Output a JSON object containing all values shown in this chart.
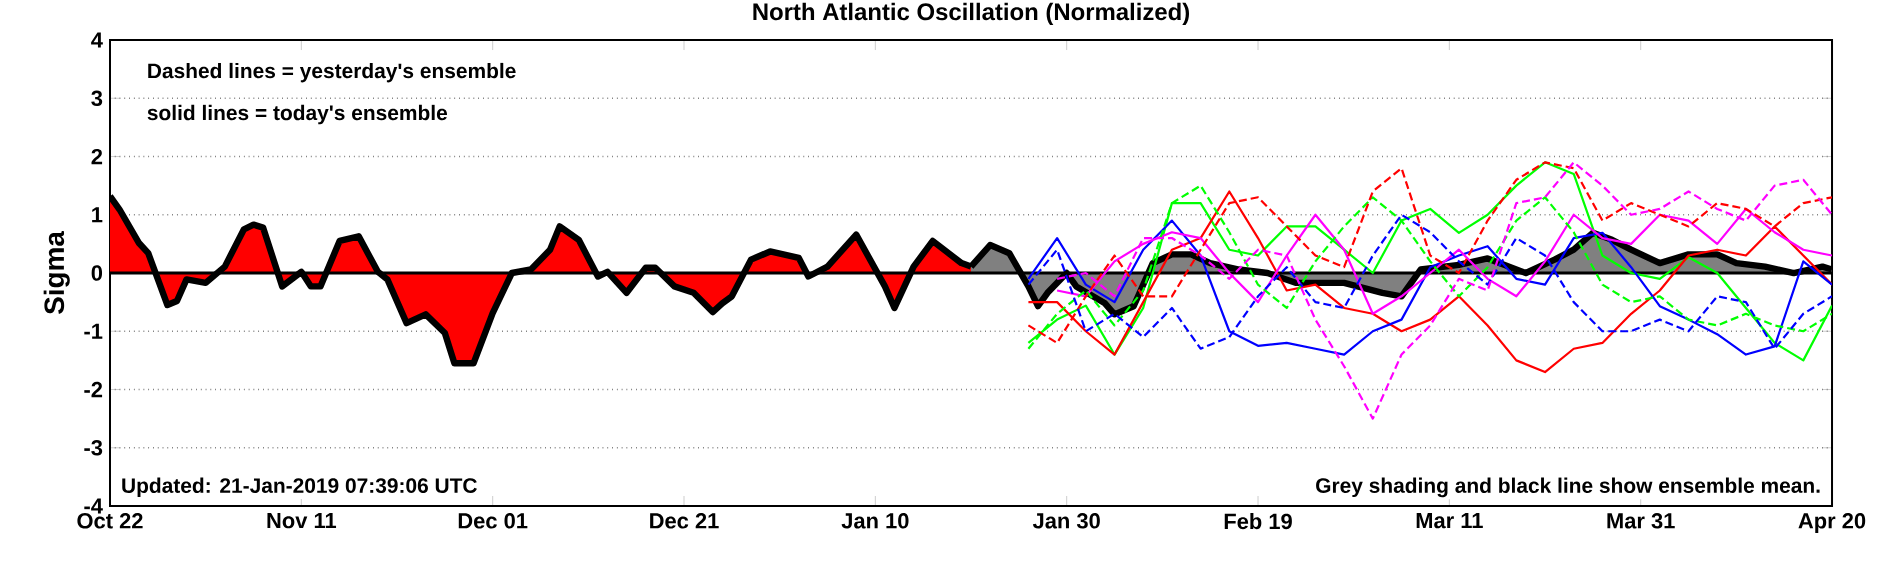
{
  "chart_data": {
    "type": "line",
    "title": "North Atlantic Oscillation (Normalized)",
    "ylabel": "Sigma",
    "x": [
      "2019-01-26",
      "2019-01-29",
      "2019-02-01",
      "2019-02-04",
      "2019-02-07",
      "2019-02-10",
      "2019-02-13",
      "2019-02-16",
      "2019-02-19",
      "2019-02-22",
      "2019-02-25",
      "2019-02-28",
      "2019-03-03",
      "2019-03-06",
      "2019-03-09",
      "2019-03-12",
      "2019-03-15",
      "2019-03-18",
      "2019-03-21",
      "2019-03-24",
      "2019-03-27",
      "2019-03-30",
      "2019-04-02",
      "2019-04-05",
      "2019-04-08",
      "2019-04-11",
      "2019-04-14",
      "2019-04-17",
      "2019-04-20"
    ],
    "xlim": [
      "2018-10-22",
      "2019-04-20"
    ],
    "xticks": [
      {
        "value": "2018-10-22",
        "label": "Oct 22"
      },
      {
        "value": "2018-11-11",
        "label": "Nov 11"
      },
      {
        "value": "2018-12-01",
        "label": "Dec 01"
      },
      {
        "value": "2018-12-21",
        "label": "Dec 21"
      },
      {
        "value": "2019-01-10",
        "label": "Jan 10"
      },
      {
        "value": "2019-01-30",
        "label": "Jan 30"
      },
      {
        "value": "2019-02-19",
        "label": "Feb 19"
      },
      {
        "value": "2019-03-11",
        "label": "Mar 11"
      },
      {
        "value": "2019-03-31",
        "label": "Mar 31"
      },
      {
        "value": "2019-04-20",
        "label": "Apr 20"
      }
    ],
    "ylim": [
      -4,
      4
    ],
    "yticks": [
      -4,
      -3,
      -2,
      -1,
      0,
      1,
      2,
      3,
      4
    ],
    "grid": "y",
    "ref_lines": [
      {
        "axis": "y",
        "value": 0,
        "color": "#000000"
      }
    ],
    "annotations": [
      "Dashed lines = yesterday's ensemble",
      "solid lines = today's ensemble",
      "Updated: 21-Jan-2019 07:39:06 UTC",
      "Grey shading and black line show ensemble mean."
    ],
    "series": [
      {
        "type": "area",
        "color": "#ff0000",
        "x": [
          "2018-10-22",
          "2018-10-23",
          "2018-10-25",
          "2018-10-26",
          "2018-10-28",
          "2018-10-29",
          "2018-10-30",
          "2018-11-01",
          "2018-11-03",
          "2018-11-05",
          "2018-11-06",
          "2018-11-07",
          "2018-11-09",
          "2018-11-11",
          "2018-11-12",
          "2018-11-13",
          "2018-11-15",
          "2018-11-17",
          "2018-11-19",
          "2018-11-20",
          "2018-11-22",
          "2018-11-24",
          "2018-11-26",
          "2018-11-27",
          "2018-11-29",
          "2018-12-01",
          "2018-12-03",
          "2018-12-05",
          "2018-12-07",
          "2018-12-08",
          "2018-12-10",
          "2018-12-12",
          "2018-12-13",
          "2018-12-15",
          "2018-12-17",
          "2018-12-18",
          "2018-12-20",
          "2018-12-22",
          "2018-12-24",
          "2018-12-25",
          "2018-12-26",
          "2018-12-28",
          "2018-12-30",
          "2019-01-02",
          "2019-01-03",
          "2019-01-05",
          "2019-01-08",
          "2019-01-11",
          "2019-01-12",
          "2019-01-14",
          "2019-01-16",
          "2019-01-19",
          "2019-01-20"
        ],
        "values": [
          1.32,
          1.09,
          0.52,
          0.34,
          -0.55,
          -0.48,
          -0.11,
          -0.17,
          0.11,
          0.75,
          0.83,
          0.78,
          -0.23,
          0.02,
          -0.23,
          -0.23,
          0.55,
          0.63,
          0.02,
          -0.11,
          -0.86,
          -0.71,
          -1.03,
          -1.55,
          -1.55,
          -0.69,
          0.0,
          0.06,
          0.4,
          0.8,
          0.57,
          -0.06,
          0.02,
          -0.34,
          0.09,
          0.09,
          -0.23,
          -0.34,
          -0.67,
          -0.52,
          -0.4,
          0.23,
          0.37,
          0.26,
          -0.06,
          0.11,
          0.66,
          -0.23,
          -0.6,
          0.11,
          0.55,
          0.17,
          0.11
        ]
      },
      {
        "color": "#00ff00",
        "values": [
          -1.2,
          -0.8,
          -0.56,
          -1.4,
          -0.6,
          1.2,
          1.2,
          0.4,
          0.3,
          0.8,
          0.8,
          0.4,
          0.0,
          0.9,
          1.1,
          0.69,
          1.0,
          1.5,
          1.9,
          1.7,
          0.3,
          0.0,
          -0.1,
          0.27,
          0.0,
          -0.6,
          -1.2,
          -1.5,
          -0.56
        ]
      },
      {
        "color": "#ff0000",
        "values": [
          -0.5,
          -0.5,
          -1.0,
          -1.4,
          -0.5,
          0.4,
          0.6,
          1.4,
          0.6,
          -0.3,
          -0.2,
          -0.6,
          -0.7,
          -1.0,
          -0.8,
          -0.4,
          -0.9,
          -1.5,
          -1.7,
          -1.3,
          -1.2,
          -0.7,
          -0.3,
          0.3,
          0.4,
          0.3,
          0.8,
          0.3,
          -0.2
        ]
      },
      {
        "color": "#0000ff",
        "values": [
          -0.1,
          0.6,
          -0.2,
          -0.5,
          0.4,
          0.9,
          0.3,
          -1.0,
          -1.25,
          -1.2,
          -1.3,
          -1.4,
          -1.0,
          -0.8,
          0.1,
          0.3,
          0.46,
          -0.1,
          -0.2,
          0.6,
          0.69,
          0.1,
          -0.57,
          -0.8,
          -1.05,
          -1.4,
          -1.26,
          0.2,
          -0.2
        ]
      },
      {
        "color": "#ff00ff",
        "values": [
          null,
          -0.3,
          -0.4,
          0.2,
          0.5,
          0.7,
          0.6,
          0.0,
          -0.5,
          0.3,
          1.0,
          0.4,
          -0.7,
          -0.4,
          0.0,
          0.4,
          -0.1,
          -0.4,
          0.2,
          1.0,
          0.6,
          0.5,
          1.0,
          0.9,
          0.5,
          1.1,
          0.7,
          0.4,
          0.3
        ]
      },
      {
        "color": "#00ff00",
        "line_style": "dashed",
        "values": [
          -1.3,
          -0.7,
          -0.3,
          -0.9,
          -0.3,
          1.2,
          1.5,
          0.7,
          -0.2,
          -0.6,
          0.2,
          0.8,
          1.3,
          0.9,
          0.2,
          -0.4,
          0.1,
          0.9,
          1.3,
          0.7,
          -0.2,
          -0.5,
          -0.4,
          -0.8,
          -0.9,
          -0.7,
          -0.9,
          -1.0,
          -0.7
        ]
      },
      {
        "color": "#ff0000",
        "line_style": "dashed",
        "values": [
          -0.9,
          -1.2,
          -0.4,
          0.3,
          -0.4,
          -0.4,
          0.4,
          1.2,
          1.3,
          0.8,
          0.3,
          0.1,
          1.4,
          1.8,
          0.3,
          0.0,
          0.9,
          1.6,
          1.9,
          1.8,
          0.9,
          1.2,
          1.0,
          0.8,
          1.2,
          1.1,
          0.8,
          1.2,
          1.3
        ]
      },
      {
        "color": "#0000ff",
        "line_style": "dashed",
        "values": [
          -0.2,
          0.4,
          -1.0,
          -0.7,
          -1.1,
          -0.6,
          -1.3,
          -1.1,
          -0.4,
          0.1,
          -0.5,
          -0.6,
          0.3,
          1.0,
          0.7,
          0.2,
          -0.2,
          0.6,
          0.3,
          -0.5,
          -1.0,
          -1.0,
          -0.8,
          -1.0,
          -0.4,
          -0.5,
          -1.3,
          -0.7,
          -0.4
        ]
      },
      {
        "color": "#ff00ff",
        "line_style": "dashed",
        "values": [
          null,
          -0.1,
          0.0,
          -0.4,
          0.6,
          0.6,
          0.3,
          -0.1,
          0.4,
          0.3,
          -0.8,
          -1.6,
          -2.5,
          -1.4,
          -0.9,
          -0.1,
          -0.3,
          1.2,
          1.3,
          1.9,
          1.5,
          1.0,
          1.1,
          1.4,
          1.1,
          0.9,
          1.5,
          1.6,
          1.0
        ]
      },
      {
        "type": "area",
        "color": "#808080",
        "x": [
          "2019-01-20",
          "2019-01-22",
          "2019-01-24",
          "2019-01-26",
          "2019-01-27",
          "2019-01-28",
          "2019-01-30",
          "2019-01-31",
          "2019-02-03",
          "2019-02-04",
          "2019-02-06",
          "2019-02-08",
          "2019-02-10",
          "2019-02-12",
          "2019-02-14",
          "2019-02-17",
          "2019-02-20",
          "2019-02-23",
          "2019-02-28",
          "2019-03-04",
          "2019-03-06",
          "2019-03-08",
          "2019-03-12",
          "2019-03-15",
          "2019-03-19",
          "2019-03-22",
          "2019-03-24",
          "2019-03-26",
          "2019-03-28",
          "2019-03-30",
          "2019-04-02",
          "2019-04-05",
          "2019-04-08",
          "2019-04-10",
          "2019-04-13",
          "2019-04-16",
          "2019-04-19",
          "2019-04-20"
        ],
        "values": [
          0.11,
          0.48,
          0.34,
          -0.23,
          -0.57,
          -0.34,
          0,
          -0.23,
          -0.52,
          -0.71,
          -0.57,
          0.17,
          0.32,
          0.32,
          0.17,
          0.06,
          0,
          -0.17,
          -0.17,
          -0.34,
          -0.4,
          0.06,
          0.14,
          0.25,
          0,
          0.23,
          0.4,
          0.69,
          0.57,
          0.4,
          0.17,
          0.32,
          0.32,
          0.17,
          0.11,
          0,
          0.11,
          0.06
        ]
      }
    ]
  }
}
